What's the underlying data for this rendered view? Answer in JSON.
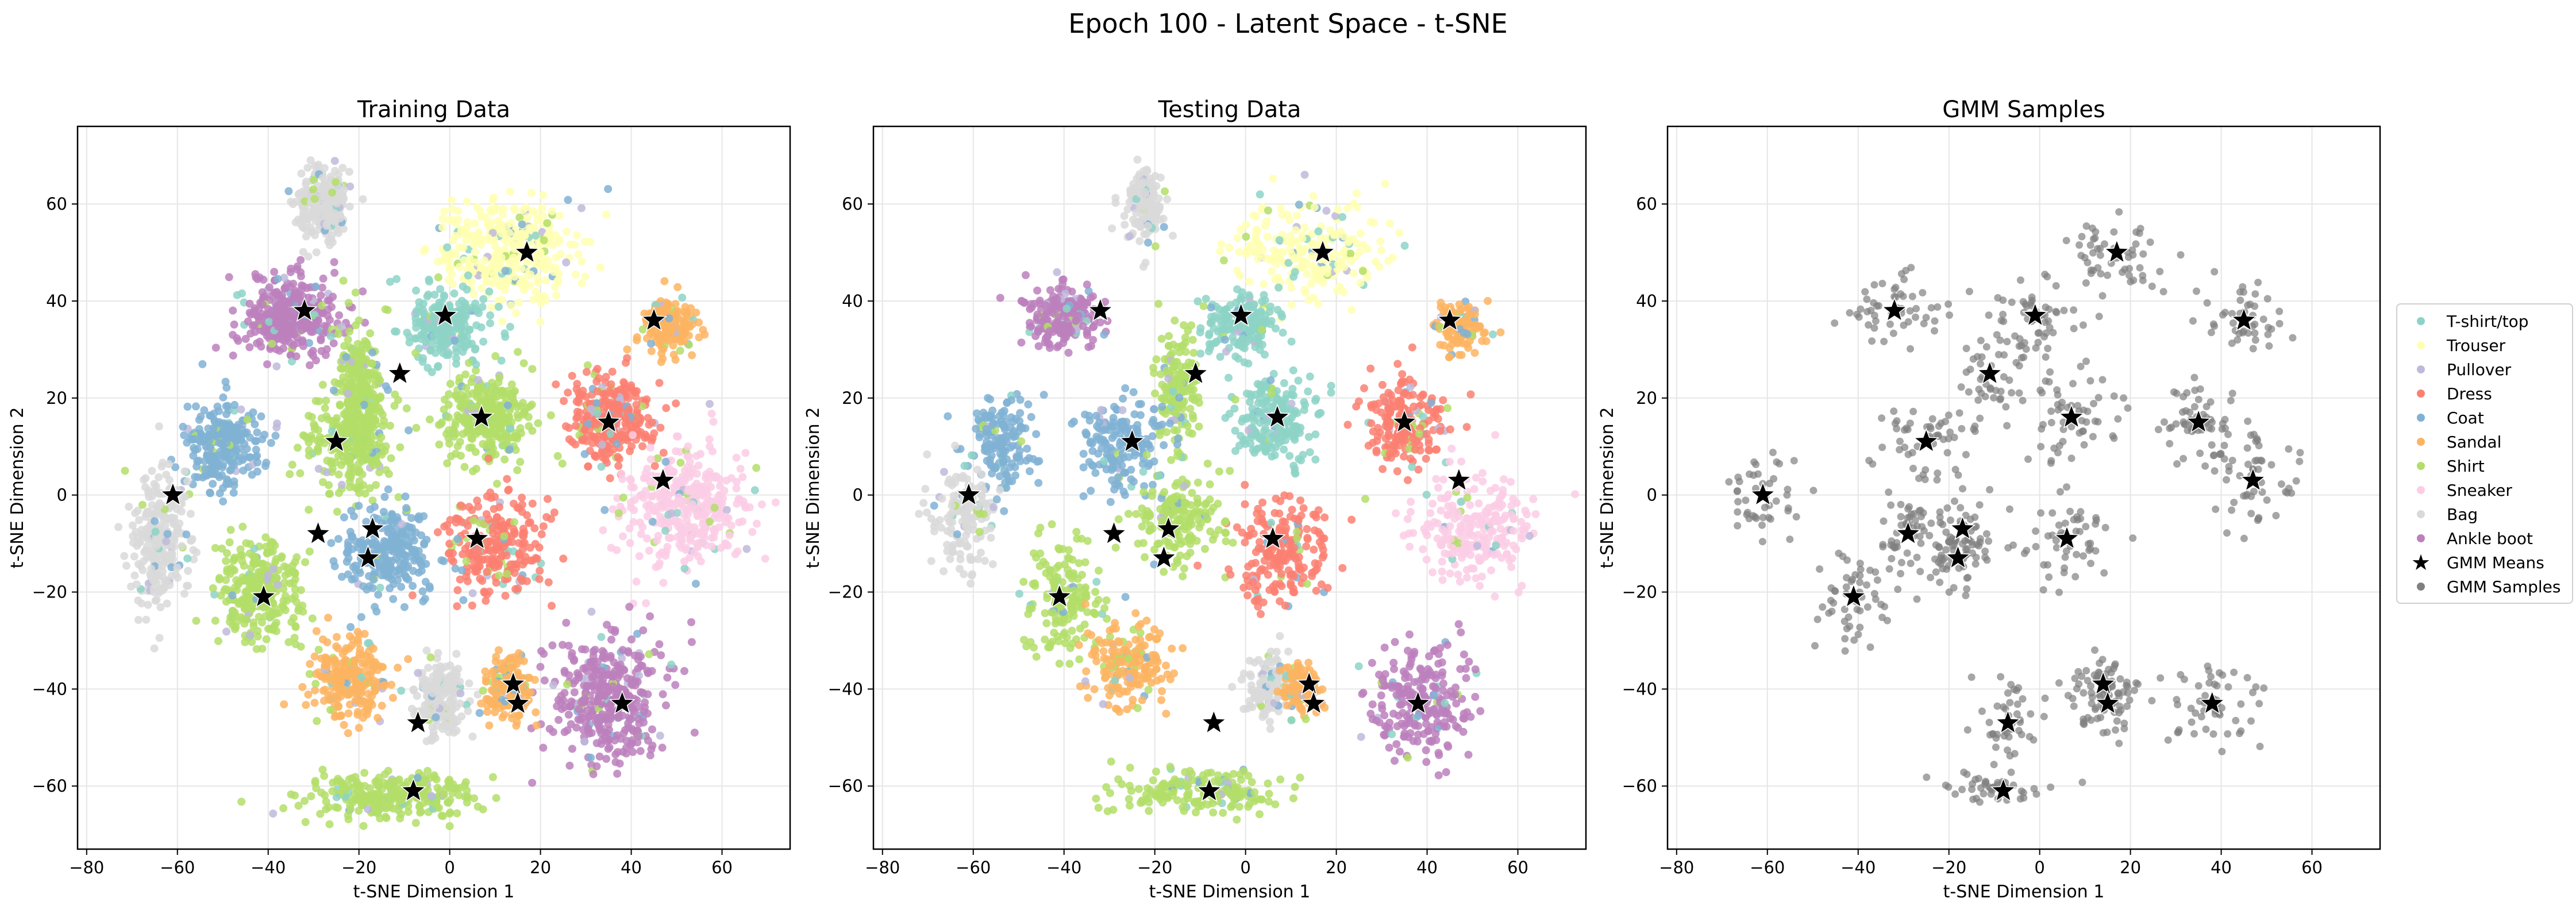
{
  "figure": {
    "title": "Epoch 100 - Latent Space - t-SNE"
  },
  "colors": {
    "classes": [
      "#8dd3c7",
      "#ffffb3",
      "#bebada",
      "#fb8072",
      "#80b1d3",
      "#fdb462",
      "#b3de69",
      "#fccde5",
      "#d9d9d9",
      "#bc80bd"
    ],
    "gmm_means": "#000000",
    "gmm_samples": "#808080",
    "grid": "#e6e6e6"
  },
  "legend": {
    "placement": "outside right",
    "entries": [
      {
        "label": "T-shirt/top",
        "marker": "dot",
        "color": "#8dd3c7"
      },
      {
        "label": "Trouser",
        "marker": "dot",
        "color": "#ffffb3"
      },
      {
        "label": "Pullover",
        "marker": "dot",
        "color": "#bebada"
      },
      {
        "label": "Dress",
        "marker": "dot",
        "color": "#fb8072"
      },
      {
        "label": "Coat",
        "marker": "dot",
        "color": "#80b1d3"
      },
      {
        "label": "Sandal",
        "marker": "dot",
        "color": "#fdb462"
      },
      {
        "label": "Shirt",
        "marker": "dot",
        "color": "#b3de69"
      },
      {
        "label": "Sneaker",
        "marker": "dot",
        "color": "#fccde5"
      },
      {
        "label": "Bag",
        "marker": "dot",
        "color": "#d9d9d9"
      },
      {
        "label": "Ankle boot",
        "marker": "dot",
        "color": "#bc80bd"
      },
      {
        "label": "GMM Means",
        "marker": "star",
        "color": "#000000"
      },
      {
        "label": "GMM Samples",
        "marker": "dot",
        "color": "#808080"
      }
    ]
  },
  "chart_data": [
    {
      "type": "scatter",
      "title": "Training Data",
      "xlabel": "t-SNE Dimension 1",
      "ylabel": "t-SNE Dimension 2",
      "xlim": [
        -82,
        75
      ],
      "ylim": [
        -73,
        76
      ],
      "xticks": [
        -80,
        -60,
        -40,
        -20,
        0,
        20,
        40,
        60
      ],
      "yticks": [
        -60,
        -40,
        -20,
        0,
        20,
        40,
        60
      ],
      "grid": true,
      "clusters": [
        {
          "class": 1,
          "x": 13,
          "y": 50,
          "rx": 18,
          "ry": 12,
          "density": 1.4
        },
        {
          "class": 8,
          "x": -28,
          "y": 60,
          "rx": 6,
          "ry": 8,
          "density": 1.0
        },
        {
          "class": 9,
          "x": -35,
          "y": 37,
          "rx": 11,
          "ry": 9,
          "density": 1.5
        },
        {
          "class": 0,
          "x": -1,
          "y": 35,
          "rx": 10,
          "ry": 8,
          "density": 1.0
        },
        {
          "class": 5,
          "x": 48,
          "y": 35,
          "rx": 6,
          "ry": 6,
          "density": 0.8
        },
        {
          "class": 3,
          "x": 35,
          "y": 16,
          "rx": 10,
          "ry": 10,
          "density": 1.3
        },
        {
          "class": 6,
          "x": 8,
          "y": 16,
          "rx": 11,
          "ry": 10,
          "density": 1.2
        },
        {
          "class": 6,
          "x": -20,
          "y": 22,
          "rx": 5,
          "ry": 16,
          "density": 0.9
        },
        {
          "class": 6,
          "x": -22,
          "y": 11,
          "rx": 10,
          "ry": 12,
          "density": 1.0
        },
        {
          "class": 4,
          "x": -50,
          "y": 10,
          "rx": 10,
          "ry": 10,
          "density": 1.0
        },
        {
          "class": 7,
          "x": 52,
          "y": -2,
          "rx": 16,
          "ry": 14,
          "density": 1.4
        },
        {
          "class": 8,
          "x": -64,
          "y": -10,
          "rx": 7,
          "ry": 16,
          "density": 1.0
        },
        {
          "class": 3,
          "x": 10,
          "y": -10,
          "rx": 12,
          "ry": 12,
          "density": 1.0
        },
        {
          "class": 4,
          "x": -14,
          "y": -12,
          "rx": 10,
          "ry": 10,
          "density": 1.0
        },
        {
          "class": 6,
          "x": -42,
          "y": -20,
          "rx": 10,
          "ry": 12,
          "density": 1.1
        },
        {
          "class": 9,
          "x": 35,
          "y": -42,
          "rx": 14,
          "ry": 14,
          "density": 1.5
        },
        {
          "class": 5,
          "x": -22,
          "y": -38,
          "rx": 10,
          "ry": 9,
          "density": 1.0
        },
        {
          "class": 8,
          "x": -2,
          "y": -42,
          "rx": 6,
          "ry": 8,
          "density": 0.8
        },
        {
          "class": 5,
          "x": 13,
          "y": -40,
          "rx": 6,
          "ry": 7,
          "density": 0.7
        },
        {
          "class": 6,
          "x": -12,
          "y": -62,
          "rx": 20,
          "ry": 5,
          "density": 1.1
        }
      ],
      "gmm_means": [
        {
          "x": 17,
          "y": 50
        },
        {
          "x": -32,
          "y": 38
        },
        {
          "x": -1,
          "y": 37
        },
        {
          "x": 45,
          "y": 36
        },
        {
          "x": -11,
          "y": 25
        },
        {
          "x": 7,
          "y": 16
        },
        {
          "x": 35,
          "y": 15
        },
        {
          "x": -25,
          "y": 11
        },
        {
          "x": -61,
          "y": 0
        },
        {
          "x": 47,
          "y": 3
        },
        {
          "x": -29,
          "y": -8
        },
        {
          "x": -17,
          "y": -7
        },
        {
          "x": 6,
          "y": -9
        },
        {
          "x": -18,
          "y": -13
        },
        {
          "x": -41,
          "y": -21
        },
        {
          "x": 14,
          "y": -39
        },
        {
          "x": 15,
          "y": -43
        },
        {
          "x": 38,
          "y": -43
        },
        {
          "x": -7,
          "y": -47
        },
        {
          "x": -8,
          "y": -61
        }
      ]
    },
    {
      "type": "scatter",
      "title": "Testing Data",
      "xlabel": "t-SNE Dimension 1",
      "ylabel": "t-SNE Dimension 2",
      "xlim": [
        -82,
        75
      ],
      "ylim": [
        -73,
        76
      ],
      "xticks": [
        -80,
        -60,
        -40,
        -20,
        0,
        20,
        40,
        60
      ],
      "yticks": [
        -60,
        -40,
        -20,
        0,
        20,
        40,
        60
      ],
      "grid": true,
      "clusters": [
        {
          "class": 1,
          "x": 14,
          "y": 50,
          "rx": 17,
          "ry": 12,
          "density": 0.9
        },
        {
          "class": 8,
          "x": -22,
          "y": 60,
          "rx": 5,
          "ry": 9,
          "density": 0.6
        },
        {
          "class": 9,
          "x": -40,
          "y": 37,
          "rx": 9,
          "ry": 7,
          "density": 0.8
        },
        {
          "class": 0,
          "x": -1,
          "y": 35,
          "rx": 10,
          "ry": 8,
          "density": 0.7
        },
        {
          "class": 5,
          "x": 47,
          "y": 35,
          "rx": 6,
          "ry": 6,
          "density": 0.5
        },
        {
          "class": 3,
          "x": 35,
          "y": 15,
          "rx": 10,
          "ry": 10,
          "density": 0.8
        },
        {
          "class": 0,
          "x": 6,
          "y": 16,
          "rx": 10,
          "ry": 10,
          "density": 0.8
        },
        {
          "class": 6,
          "x": -15,
          "y": 22,
          "rx": 5,
          "ry": 16,
          "density": 0.6
        },
        {
          "class": 4,
          "x": -27,
          "y": 10,
          "rx": 10,
          "ry": 12,
          "density": 0.7
        },
        {
          "class": 4,
          "x": -54,
          "y": 10,
          "rx": 9,
          "ry": 10,
          "density": 0.6
        },
        {
          "class": 7,
          "x": 50,
          "y": -7,
          "rx": 16,
          "ry": 12,
          "density": 0.9
        },
        {
          "class": 8,
          "x": -62,
          "y": -5,
          "rx": 8,
          "ry": 12,
          "density": 0.6
        },
        {
          "class": 3,
          "x": 8,
          "y": -12,
          "rx": 12,
          "ry": 12,
          "density": 0.8
        },
        {
          "class": 6,
          "x": -15,
          "y": -5,
          "rx": 10,
          "ry": 10,
          "density": 0.7
        },
        {
          "class": 6,
          "x": -40,
          "y": -22,
          "rx": 10,
          "ry": 12,
          "density": 0.7
        },
        {
          "class": 9,
          "x": 38,
          "y": -43,
          "rx": 14,
          "ry": 13,
          "density": 0.9
        },
        {
          "class": 5,
          "x": -25,
          "y": -35,
          "rx": 10,
          "ry": 10,
          "density": 0.7
        },
        {
          "class": 8,
          "x": 5,
          "y": -40,
          "rx": 6,
          "ry": 8,
          "density": 0.5
        },
        {
          "class": 5,
          "x": 12,
          "y": -40,
          "rx": 5,
          "ry": 6,
          "density": 0.5
        },
        {
          "class": 6,
          "x": -10,
          "y": -61,
          "rx": 20,
          "ry": 5,
          "density": 0.7
        }
      ],
      "gmm_means": [
        {
          "x": 17,
          "y": 50
        },
        {
          "x": -32,
          "y": 38
        },
        {
          "x": -1,
          "y": 37
        },
        {
          "x": 45,
          "y": 36
        },
        {
          "x": -11,
          "y": 25
        },
        {
          "x": 7,
          "y": 16
        },
        {
          "x": 35,
          "y": 15
        },
        {
          "x": -25,
          "y": 11
        },
        {
          "x": -61,
          "y": 0
        },
        {
          "x": 47,
          "y": 3
        },
        {
          "x": -29,
          "y": -8
        },
        {
          "x": -17,
          "y": -7
        },
        {
          "x": 6,
          "y": -9
        },
        {
          "x": -18,
          "y": -13
        },
        {
          "x": -41,
          "y": -21
        },
        {
          "x": 14,
          "y": -39
        },
        {
          "x": 15,
          "y": -43
        },
        {
          "x": 38,
          "y": -43
        },
        {
          "x": -7,
          "y": -47
        },
        {
          "x": -8,
          "y": -61
        }
      ]
    },
    {
      "type": "scatter",
      "title": "GMM Samples",
      "xlabel": "t-SNE Dimension 1",
      "ylabel": "t-SNE Dimension 2",
      "xlim": [
        -82,
        75
      ],
      "ylim": [
        -73,
        76
      ],
      "xticks": [
        -80,
        -60,
        -40,
        -20,
        0,
        20,
        40,
        60
      ],
      "yticks": [
        -60,
        -40,
        -20,
        0,
        20,
        40,
        60
      ],
      "grid": true,
      "clusters": [
        {
          "class": "gmm",
          "x": 17,
          "y": 50,
          "rx": 14,
          "ry": 10,
          "density": 0.5
        },
        {
          "class": "gmm",
          "x": -32,
          "y": 38,
          "rx": 12,
          "ry": 8,
          "density": 0.5
        },
        {
          "class": "gmm",
          "x": -1,
          "y": 37,
          "rx": 10,
          "ry": 9,
          "density": 0.5
        },
        {
          "class": "gmm",
          "x": 45,
          "y": 36,
          "rx": 9,
          "ry": 8,
          "density": 0.4
        },
        {
          "class": "gmm",
          "x": -11,
          "y": 25,
          "rx": 8,
          "ry": 12,
          "density": 0.4
        },
        {
          "class": "gmm",
          "x": 7,
          "y": 16,
          "rx": 11,
          "ry": 10,
          "density": 0.5
        },
        {
          "class": "gmm",
          "x": 35,
          "y": 15,
          "rx": 10,
          "ry": 10,
          "density": 0.5
        },
        {
          "class": "gmm",
          "x": -25,
          "y": 11,
          "rx": 11,
          "ry": 11,
          "density": 0.5
        },
        {
          "class": "gmm",
          "x": -61,
          "y": 0,
          "rx": 8,
          "ry": 12,
          "density": 0.4
        },
        {
          "class": "gmm",
          "x": 47,
          "y": 3,
          "rx": 13,
          "ry": 12,
          "density": 0.5
        },
        {
          "class": "gmm",
          "x": -29,
          "y": -8,
          "rx": 9,
          "ry": 9,
          "density": 0.4
        },
        {
          "class": "gmm",
          "x": -17,
          "y": -7,
          "rx": 8,
          "ry": 8,
          "density": 0.4
        },
        {
          "class": "gmm",
          "x": 6,
          "y": -9,
          "rx": 11,
          "ry": 11,
          "density": 0.5
        },
        {
          "class": "gmm",
          "x": -18,
          "y": -13,
          "rx": 8,
          "ry": 8,
          "density": 0.4
        },
        {
          "class": "gmm",
          "x": -41,
          "y": -21,
          "rx": 10,
          "ry": 12,
          "density": 0.5
        },
        {
          "class": "gmm",
          "x": 14,
          "y": -39,
          "rx": 8,
          "ry": 8,
          "density": 0.4
        },
        {
          "class": "gmm",
          "x": 15,
          "y": -43,
          "rx": 8,
          "ry": 8,
          "density": 0.4
        },
        {
          "class": "gmm",
          "x": 38,
          "y": -43,
          "rx": 12,
          "ry": 10,
          "density": 0.5
        },
        {
          "class": "gmm",
          "x": -7,
          "y": -47,
          "rx": 8,
          "ry": 8,
          "density": 0.4
        },
        {
          "class": "gmm",
          "x": -8,
          "y": -61,
          "rx": 14,
          "ry": 4,
          "density": 0.4
        }
      ],
      "gmm_means": [
        {
          "x": 17,
          "y": 50
        },
        {
          "x": -32,
          "y": 38
        },
        {
          "x": -1,
          "y": 37
        },
        {
          "x": 45,
          "y": 36
        },
        {
          "x": -11,
          "y": 25
        },
        {
          "x": 7,
          "y": 16
        },
        {
          "x": 35,
          "y": 15
        },
        {
          "x": -25,
          "y": 11
        },
        {
          "x": -61,
          "y": 0
        },
        {
          "x": 47,
          "y": 3
        },
        {
          "x": -29,
          "y": -8
        },
        {
          "x": -17,
          "y": -7
        },
        {
          "x": 6,
          "y": -9
        },
        {
          "x": -18,
          "y": -13
        },
        {
          "x": -41,
          "y": -21
        },
        {
          "x": 14,
          "y": -39
        },
        {
          "x": 15,
          "y": -43
        },
        {
          "x": 38,
          "y": -43
        },
        {
          "x": -7,
          "y": -47
        },
        {
          "x": -8,
          "y": -61
        }
      ]
    }
  ]
}
